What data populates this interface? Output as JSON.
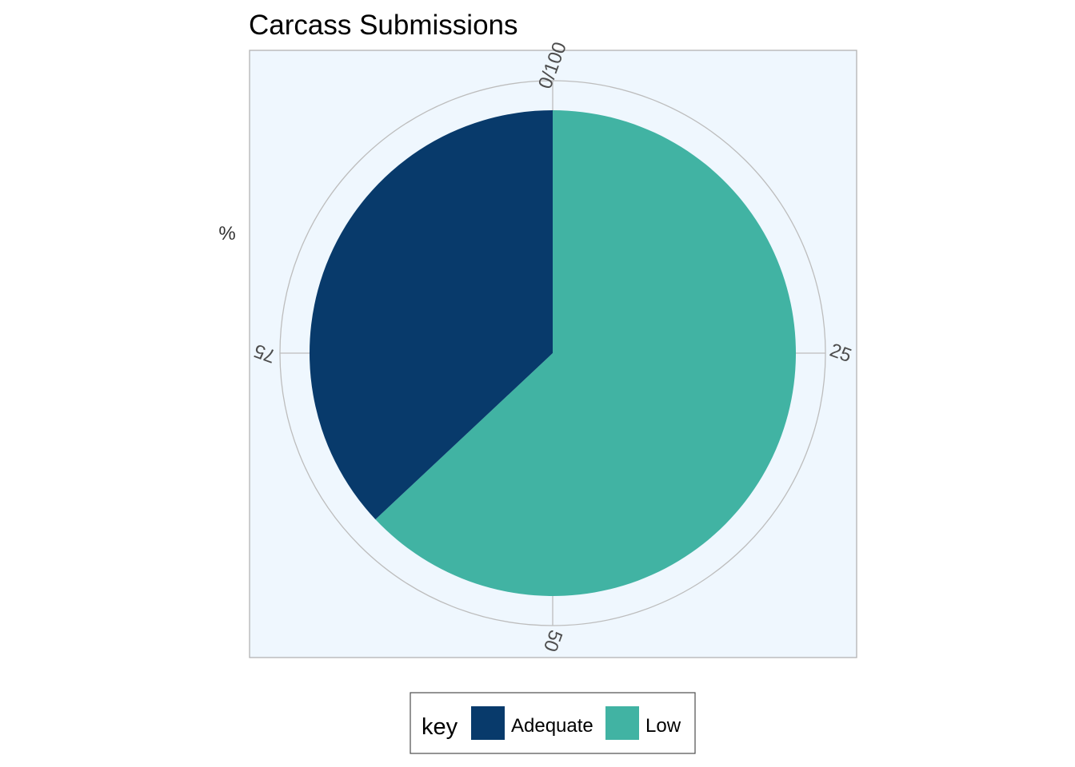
{
  "chart_data": {
    "type": "pie",
    "title": "Carcass Submissions",
    "ylabel": "%",
    "theta_ticks": [
      {
        "value": 0,
        "label": "0/100"
      },
      {
        "value": 25,
        "label": "25"
      },
      {
        "value": 50,
        "label": "50"
      },
      {
        "value": 75,
        "label": "75"
      }
    ],
    "legend": {
      "title": "key",
      "position": "bottom"
    },
    "slices": [
      {
        "name": "Low",
        "value": 63,
        "color": "#41B3A3"
      },
      {
        "name": "Adequate",
        "value": 37,
        "color": "#083A6B"
      }
    ]
  },
  "colors": {
    "panel_background": "#EFF7FE",
    "panel_border": "#B3B3B3",
    "grid": "#BDBDBD"
  }
}
